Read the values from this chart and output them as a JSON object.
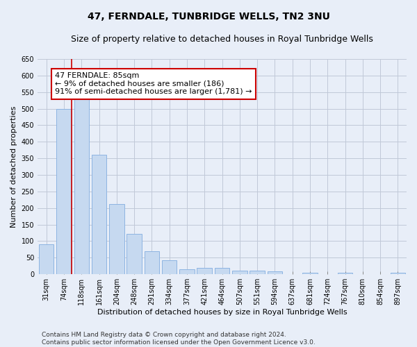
{
  "title": "47, FERNDALE, TUNBRIDGE WELLS, TN2 3NU",
  "subtitle": "Size of property relative to detached houses in Royal Tunbridge Wells",
  "xlabel": "Distribution of detached houses by size in Royal Tunbridge Wells",
  "ylabel": "Number of detached properties",
  "footer_line1": "Contains HM Land Registry data © Crown copyright and database right 2024.",
  "footer_line2": "Contains public sector information licensed under the Open Government Licence v3.0.",
  "bar_labels": [
    "31sqm",
    "74sqm",
    "118sqm",
    "161sqm",
    "204sqm",
    "248sqm",
    "291sqm",
    "334sqm",
    "377sqm",
    "421sqm",
    "464sqm",
    "507sqm",
    "551sqm",
    "594sqm",
    "637sqm",
    "681sqm",
    "724sqm",
    "767sqm",
    "810sqm",
    "854sqm",
    "897sqm"
  ],
  "bar_values": [
    90,
    500,
    530,
    360,
    212,
    122,
    70,
    43,
    16,
    20,
    20,
    11,
    11,
    8,
    0,
    5,
    0,
    5,
    0,
    0,
    5
  ],
  "bar_color": "#c6d9f0",
  "bar_edgecolor": "#8db4e2",
  "grid_color": "#c0c8d8",
  "background_color": "#e8eef8",
  "annotation_text": "47 FERNDALE: 85sqm\n← 9% of detached houses are smaller (186)\n91% of semi-detached houses are larger (1,781) →",
  "annotation_box_color": "#ffffff",
  "annotation_border_color": "#cc0000",
  "marker_line_color": "#cc0000",
  "ylim": [
    0,
    650
  ],
  "yticks": [
    0,
    50,
    100,
    150,
    200,
    250,
    300,
    350,
    400,
    450,
    500,
    550,
    600,
    650
  ],
  "title_fontsize": 10,
  "subtitle_fontsize": 9,
  "axis_fontsize": 8,
  "tick_fontsize": 7,
  "annotation_fontsize": 8,
  "footer_fontsize": 6.5
}
